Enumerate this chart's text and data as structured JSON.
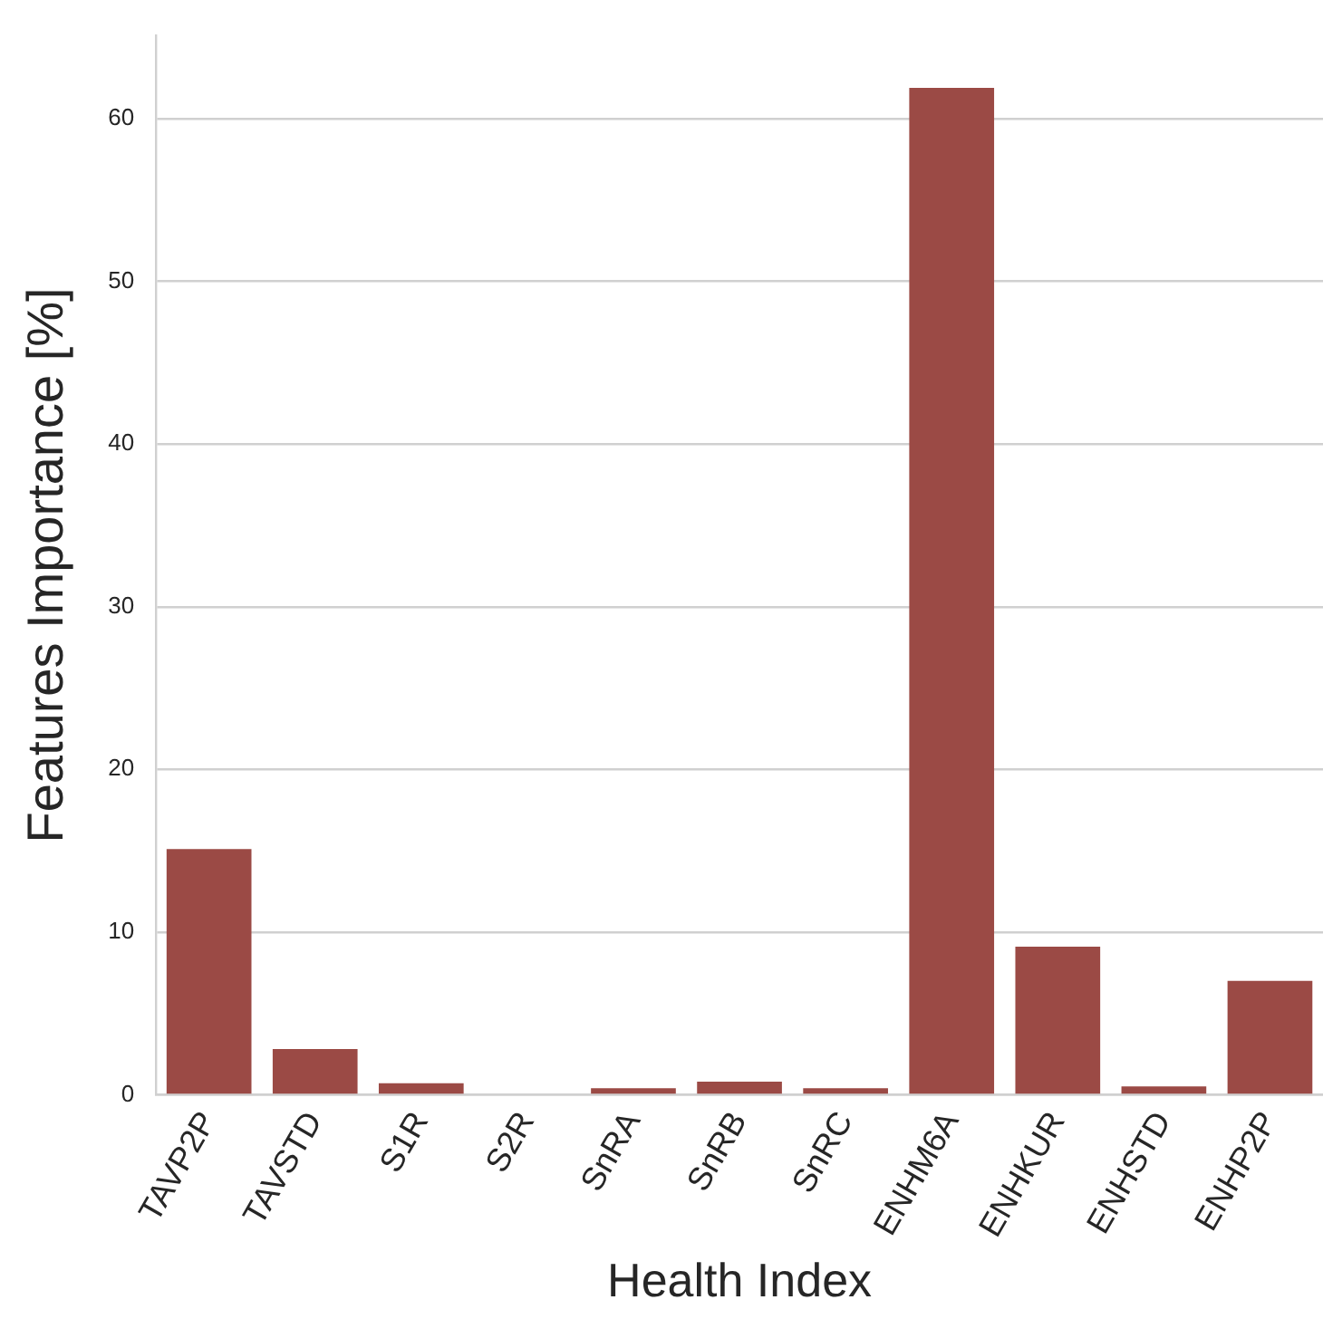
{
  "chart_data": {
    "type": "bar",
    "xlabel": "Health Index",
    "ylabel": "Features Importance [%]",
    "categories": [
      "TAVP2P",
      "TAVSTD",
      "S1R",
      "S2R",
      "SnRA",
      "SnRB",
      "SnRC",
      "ENHM6A",
      "ENHKUR",
      "ENHSTD",
      "ENHP2P"
    ],
    "values": [
      15.1,
      2.8,
      0.7,
      0,
      0.4,
      0.8,
      0.4,
      61.9,
      9.1,
      0.5,
      7.0
    ],
    "color": "#9b4a45",
    "ylim": [
      0,
      65.1
    ],
    "yticks": [
      0,
      10,
      20,
      30,
      40,
      50,
      60
    ],
    "grid": "y"
  }
}
